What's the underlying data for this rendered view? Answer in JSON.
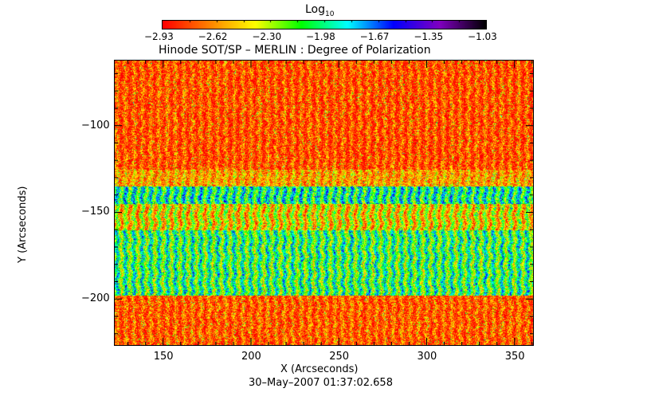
{
  "chart_data": {
    "type": "heatmap",
    "title": "Hinode SOT/SP – MERLIN : Degree of Polarization",
    "xlabel": "X (Arcseconds)",
    "ylabel": "Y (Arcseconds)",
    "footer": "30–May–2007 01:37:02.658",
    "xlim": [
      122,
      361
    ],
    "ylim": [
      -227,
      -62
    ],
    "xticks": [
      150,
      200,
      250,
      300,
      350
    ],
    "yticks": [
      -100,
      -150,
      -200
    ],
    "colorbar": {
      "label": "Log",
      "label_sub": "10",
      "range": [
        -2.93,
        -1.03
      ],
      "ticks": [
        "−2.93",
        "−2.62",
        "−2.30",
        "−1.98",
        "−1.67",
        "−1.35",
        "−1.03"
      ],
      "colors": [
        "#ff0000",
        "#ff8000",
        "#ffff00",
        "#00ff00",
        "#00ffff",
        "#0000ff",
        "#8000c0",
        "#000000"
      ]
    },
    "band_profile": [
      {
        "y_from": -62,
        "y_to": -125,
        "mean": -2.78
      },
      {
        "y_from": -125,
        "y_to": -135,
        "mean": -2.6
      },
      {
        "y_from": -135,
        "y_to": -145,
        "mean": -2.0
      },
      {
        "y_from": -145,
        "y_to": -160,
        "mean": -2.45
      },
      {
        "y_from": -160,
        "y_to": -198,
        "mean": -2.1
      },
      {
        "y_from": -198,
        "y_to": -227,
        "mean": -2.75
      }
    ]
  }
}
